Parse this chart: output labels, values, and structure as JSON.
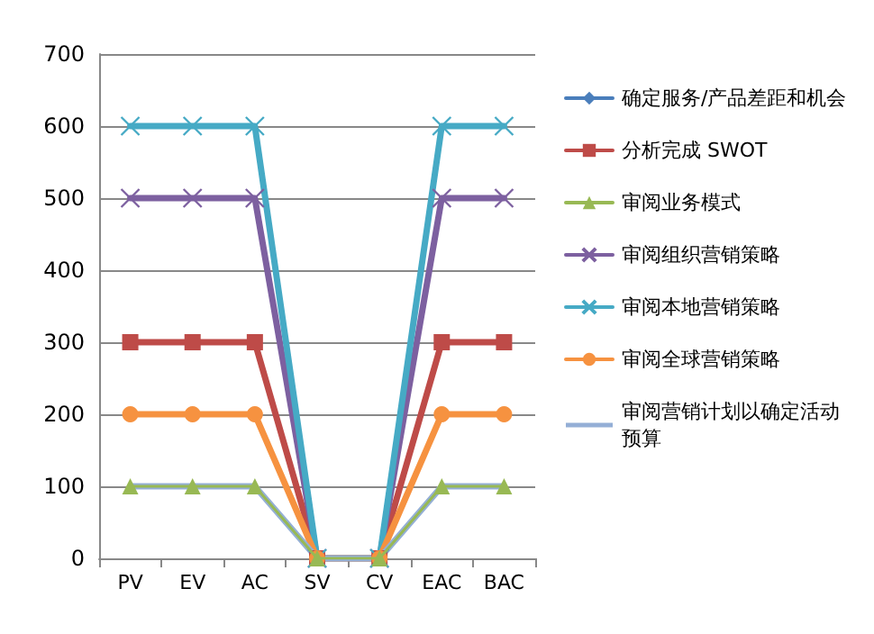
{
  "chart_data": {
    "type": "line",
    "categories": [
      "PV",
      "EV",
      "AC",
      "SV",
      "CV",
      "EAC",
      "BAC"
    ],
    "ylim": [
      0,
      700
    ],
    "yticks": [
      0,
      100,
      200,
      300,
      400,
      500,
      600,
      700
    ],
    "grid": "y",
    "legend": "right",
    "series": [
      {
        "name": "确定服务/产品差距和机会",
        "color": "#4a7ebb",
        "marker": "diamond",
        "values": [
          null,
          null,
          null,
          null,
          null,
          null,
          null
        ]
      },
      {
        "name": "分析完成 SWOT",
        "color": "#be4b48",
        "marker": "square",
        "values": [
          300,
          300,
          300,
          0,
          0,
          300,
          300
        ]
      },
      {
        "name": "审阅业务模式",
        "color": "#98b954",
        "marker": "triangle",
        "values": [
          100,
          100,
          100,
          0,
          0,
          100,
          100
        ]
      },
      {
        "name": "审阅组织营销策略",
        "color": "#7d60a0",
        "marker": "cross",
        "values": [
          500,
          500,
          500,
          0,
          0,
          500,
          500
        ]
      },
      {
        "name": "审阅本地营销策略",
        "color": "#46aac5",
        "marker": "cross",
        "values": [
          600,
          600,
          600,
          0,
          0,
          600,
          600
        ]
      },
      {
        "name": "审阅全球营销策略",
        "color": "#f69240",
        "marker": "circle",
        "values": [
          200,
          200,
          200,
          0,
          0,
          200,
          200
        ]
      },
      {
        "name": "审阅营销计划以确定活动预算",
        "color": "#94afd6",
        "marker": "none",
        "values": [
          100,
          100,
          100,
          0,
          0,
          100,
          100
        ]
      }
    ]
  }
}
